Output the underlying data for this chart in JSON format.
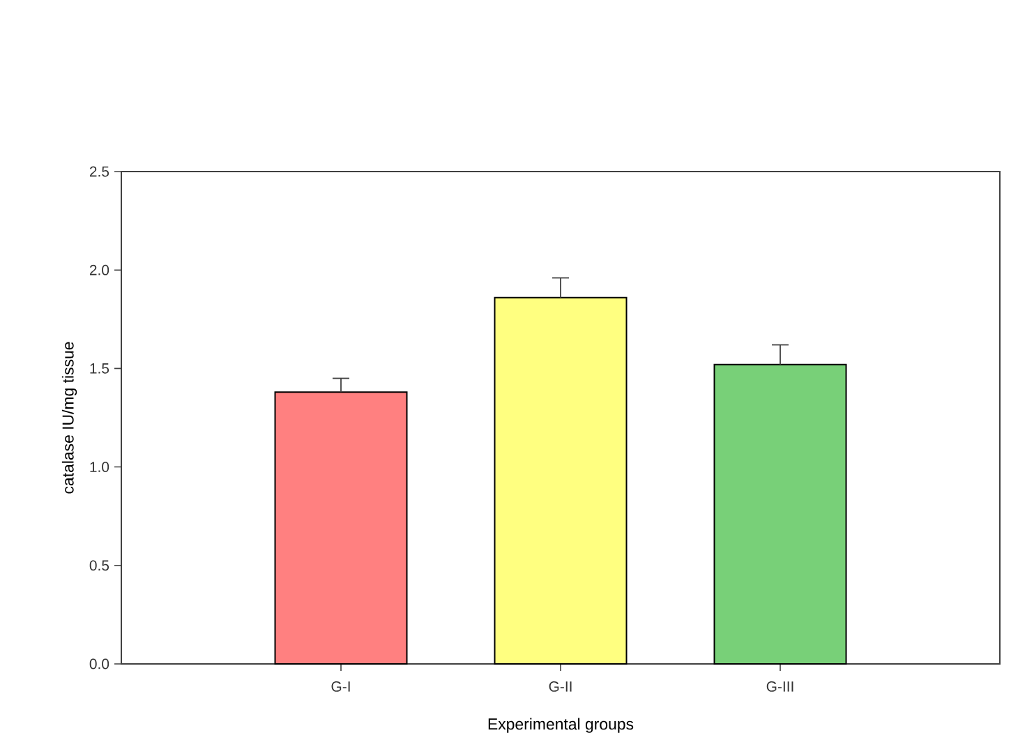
{
  "chart_data": {
    "type": "bar",
    "xlabel": "Experimental groups",
    "ylabel": "catalase IU/mg tissue",
    "categories": [
      "G-I",
      "G-II",
      "G-III"
    ],
    "values": [
      1.38,
      1.86,
      1.52
    ],
    "errors": [
      0.07,
      0.1,
      0.1
    ],
    "colors": [
      "#ff8080",
      "#ffff80",
      "#78d078"
    ],
    "ylim": [
      0,
      2.5
    ],
    "yticks": [
      {
        "value": 0,
        "label": "0.0"
      },
      {
        "value": 0.5,
        "label": "0.5"
      },
      {
        "value": 1,
        "label": "1.0"
      },
      {
        "value": 1.5,
        "label": "1.5"
      },
      {
        "value": 2,
        "label": "2.0"
      },
      {
        "value": 2.5,
        "label": "2.5"
      }
    ],
    "grid": false
  }
}
